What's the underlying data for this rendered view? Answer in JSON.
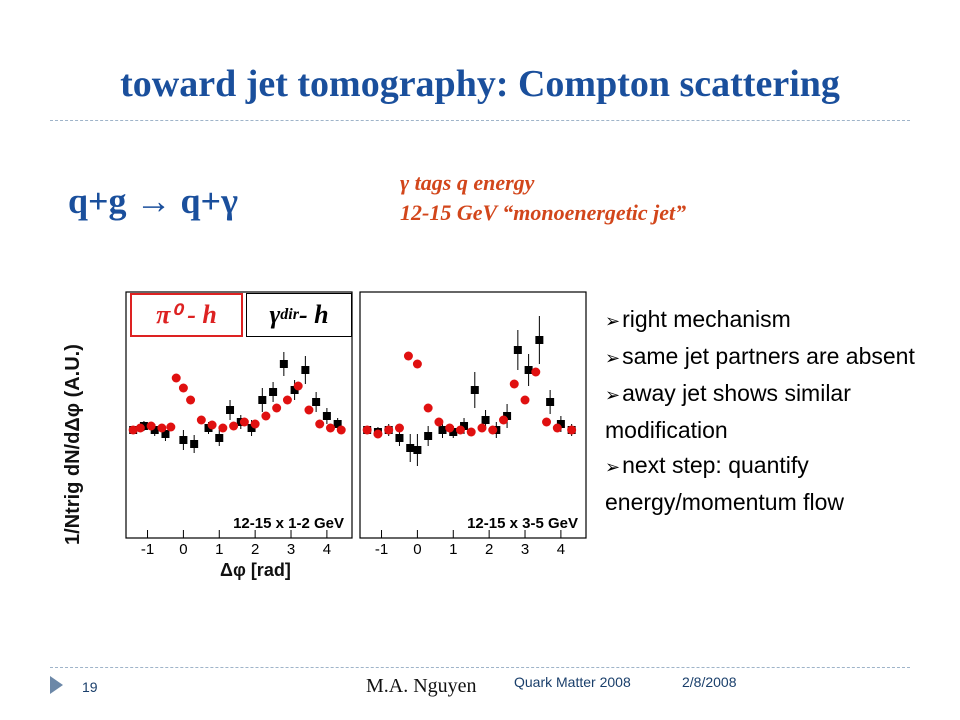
{
  "slide": {
    "title": "toward jet tomography: Compton scattering",
    "reaction": "q+g → q+γ",
    "tag_line1": "γ tags q energy",
    "tag_line2": "12-15 GeV “monoenergetic jet”"
  },
  "figure": {
    "ylabel": "1/Ntrig dN/dΔφ (A.U.)",
    "xlabel": "Δφ [rad]",
    "box_left": "π⁰ - h",
    "box_right_main": "γ",
    "box_right_sub": "dir",
    "box_right_tail": " - h",
    "panel_left_label": "12-15 x 1-2 GeV",
    "panel_right_label": "12-15 x 3-5 GeV",
    "ticks": [
      "-1",
      "0",
      "1",
      "2",
      "3",
      "4"
    ]
  },
  "bullets": [
    "right mechanism",
    "same jet partners are absent",
    "away jet shows similar modification",
    "next step: quantify energy/momentum flow"
  ],
  "footer": {
    "page": "19",
    "author": "M.A. Nguyen",
    "conference": "Quark Matter 2008",
    "date": "2/8/2008"
  },
  "colors": {
    "title": "#1a4f9c",
    "tag": "#d2461b",
    "red_marker": "#e01010",
    "black_marker": "#000000"
  }
}
